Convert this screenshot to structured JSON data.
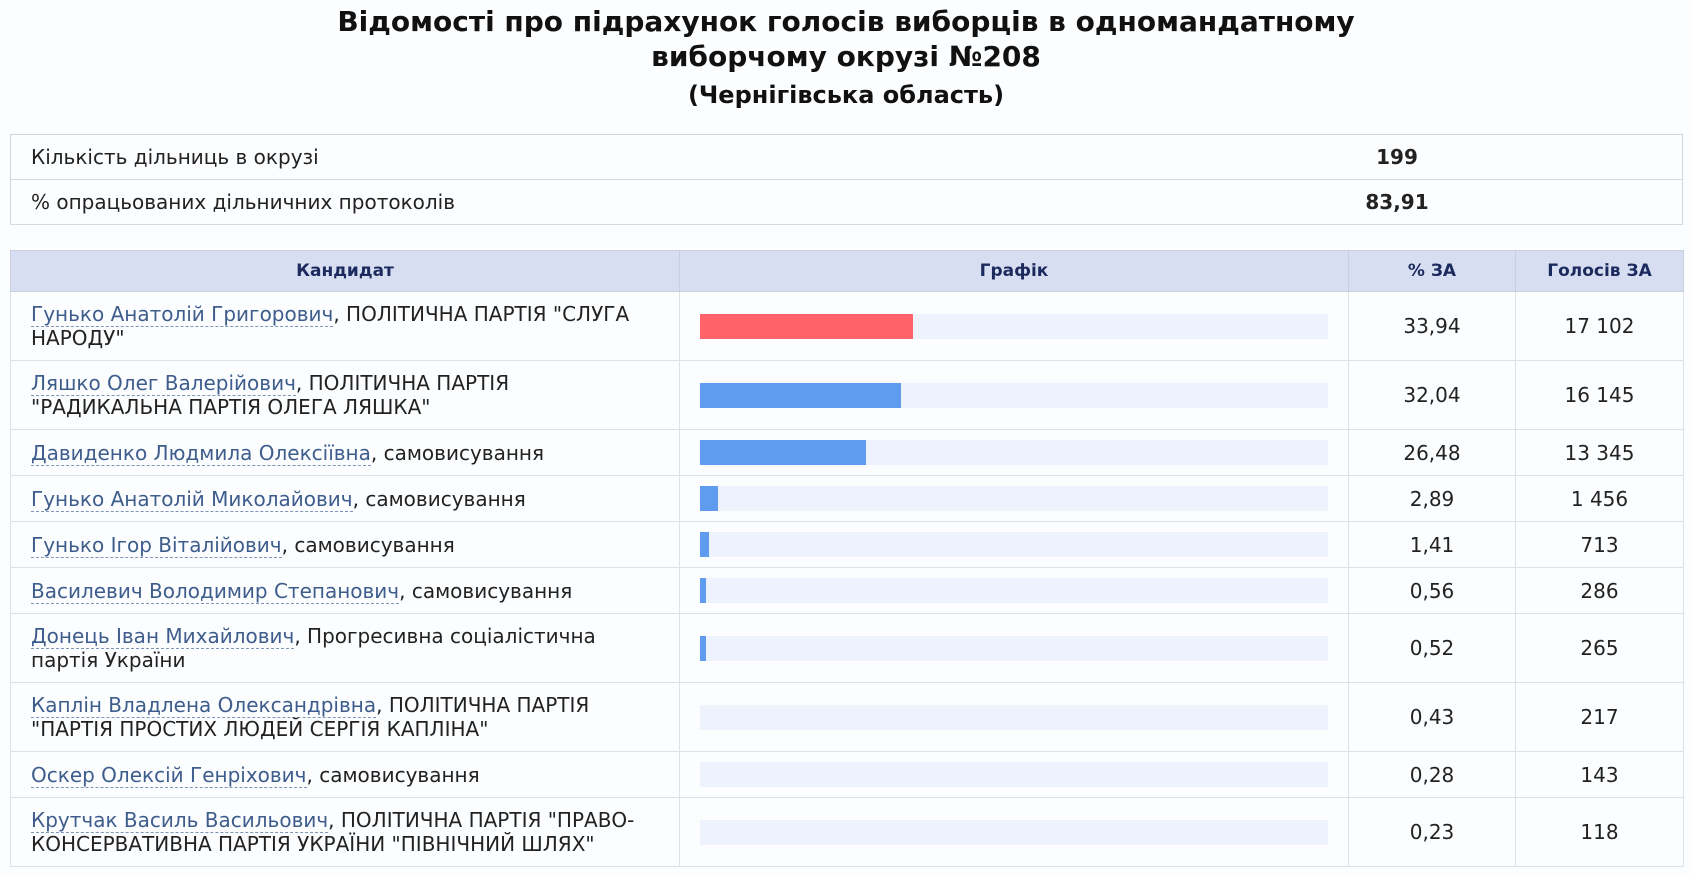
{
  "header": {
    "title_line1": "Відомості про підрахунок голосів виборців в одномандатному",
    "title_line2": "виборчому окрузі №208",
    "region": "(Чернігівська область)"
  },
  "summary": {
    "stations_label": "Кількість дільниць в окрузі",
    "stations_value": "199",
    "processed_label": "% опрацьованих дільничних протоколів",
    "processed_value": "83,91"
  },
  "table": {
    "headers": [
      "Кандидат",
      "Графік",
      "% ЗА",
      "Голосів ЗА"
    ],
    "colors": {
      "leader": "#ff6268",
      "other": "#5f9cf0",
      "track": "#eef2fd"
    },
    "rows": [
      {
        "name": "Гунько Анатолій Григорович",
        "party": ", ПОЛІТИЧНА ПАРТІЯ \"СЛУГА НАРОДУ\"",
        "percent": "33,94",
        "votes": "17 102",
        "share": 33.94
      },
      {
        "name": "Ляшко Олег Валерійович",
        "party": ", ПОЛІТИЧНА ПАРТІЯ \"РАДИКАЛЬНА ПАРТІЯ ОЛЕГА ЛЯШКА\"",
        "percent": "32,04",
        "votes": "16 145",
        "share": 32.04
      },
      {
        "name": "Давиденко Людмила Олексіївна",
        "party": ", самовисування",
        "percent": "26,48",
        "votes": "13 345",
        "share": 26.48
      },
      {
        "name": "Гунько Анатолій Миколайович",
        "party": ", самовисування",
        "percent": "2,89",
        "votes": "1 456",
        "share": 2.89
      },
      {
        "name": "Гунько Ігор Віталійович",
        "party": ", самовисування",
        "percent": "1,41",
        "votes": "713",
        "share": 1.41
      },
      {
        "name": "Василевич Володимир Степанович",
        "party": ", самовисування",
        "percent": "0,56",
        "votes": "286",
        "share": 0.56
      },
      {
        "name": "Донець Іван Михайлович",
        "party": ", Прогресивна соціалістична партія України",
        "percent": "0,52",
        "votes": "265",
        "share": 0.52
      },
      {
        "name": "Каплін Владлена Олександрівна",
        "party": ", ПОЛІТИЧНА ПАРТІЯ \"ПАРТІЯ ПРОСТИХ ЛЮДЕЙ СЕРГІЯ КАПЛІНА\"",
        "percent": "0,43",
        "votes": "217",
        "share": 0.43
      },
      {
        "name": "Оскер Олексій Генріхович",
        "party": ", самовисування",
        "percent": "0,28",
        "votes": "143",
        "share": 0.28
      },
      {
        "name": "Крутчак Василь Васильович",
        "party": ", ПОЛІТИЧНА ПАРТІЯ \"ПРАВО-КОНСЕРВАТИВНА ПАРТІЯ УКРАЇНИ \"ПІВНІЧНИЙ ШЛЯХ\"",
        "percent": "0,23",
        "votes": "118",
        "share": 0.23
      }
    ]
  }
}
